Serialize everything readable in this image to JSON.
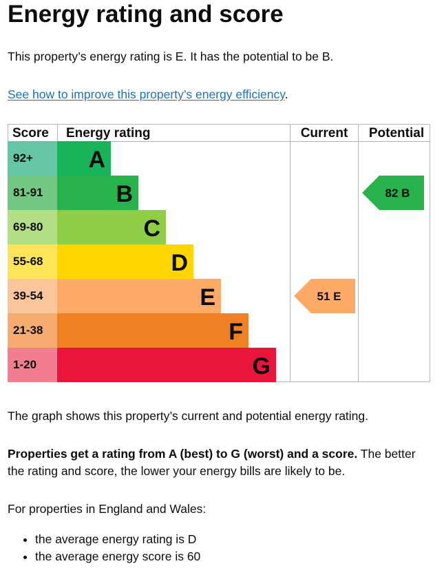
{
  "page": {
    "title": "Energy rating and score",
    "summary": "This property’s energy rating is E. It has the potential to be B.",
    "improve_link": "See how to improve this property’s energy efficiency",
    "improve_suffix": ".",
    "graph_description": "The graph shows this property’s current and potential energy rating.",
    "rating_explainer_bold": "Properties get a rating from A (best) to G (worst) and a score.",
    "rating_explainer_rest": " The better the rating and score, the lower your energy bills are likely to be.",
    "england_wales_intro": "For properties in England and Wales:",
    "averages": [
      "the average energy rating is D",
      "the average energy score is 60"
    ]
  },
  "table": {
    "headers": {
      "score": "Score",
      "energy_rating": "Energy rating",
      "current": "Current",
      "potential": "Potential"
    }
  },
  "chart_data": {
    "type": "table",
    "bands": [
      {
        "score": "92+",
        "letter": "A",
        "bar_color": "#19b459",
        "score_color": "#64c6a7"
      },
      {
        "score": "81-91",
        "letter": "B",
        "bar_color": "#28b24b",
        "score_color": "#72c782"
      },
      {
        "score": "69-80",
        "letter": "C",
        "bar_color": "#8dce46",
        "score_color": "#b3de84"
      },
      {
        "score": "55-68",
        "letter": "D",
        "bar_color": "#ffd500",
        "score_color": "#fde459"
      },
      {
        "score": "39-54",
        "letter": "E",
        "bar_color": "#fcaa65",
        "score_color": "#f9c59a"
      },
      {
        "score": "21-38",
        "letter": "F",
        "bar_color": "#ef8023",
        "score_color": "#f6ab6f"
      },
      {
        "score": "1-20",
        "letter": "G",
        "bar_color": "#e9153b",
        "score_color": "#f27d91"
      }
    ],
    "current": {
      "score": 51,
      "letter": "E",
      "color": "#fcaa65"
    },
    "potential": {
      "score": 82,
      "letter": "B",
      "color": "#28b24b"
    }
  }
}
